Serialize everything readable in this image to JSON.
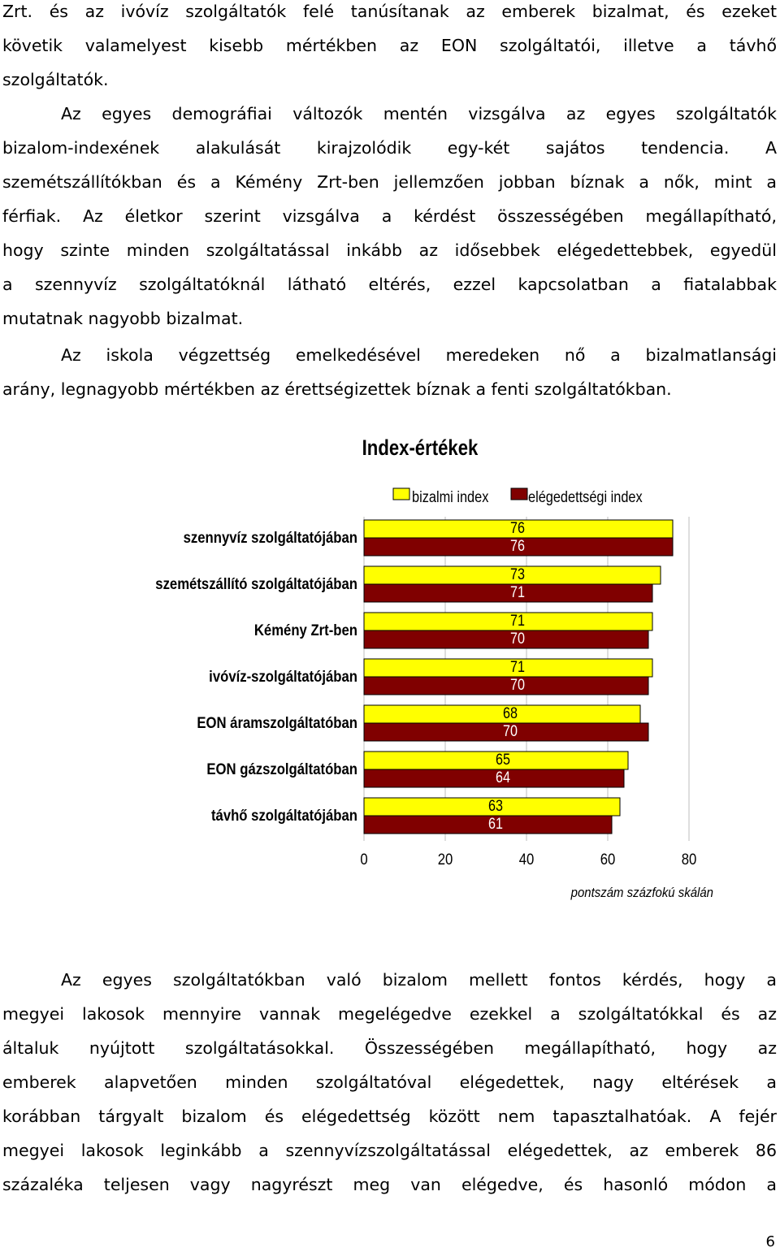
{
  "paragraphs_top": {
    "p1": [
      "Zrt. és az ivóvíz szolgáltatók felé tanúsítanak az emberek bizalmat, és ezeket",
      "követik valamelyest kisebb mértékben az EON szolgáltatói, illetve a távhő",
      "szolgáltatók."
    ],
    "p2": [
      "Az egyes demográfiai változók mentén vizsgálva az egyes szolgáltatók",
      "bizalom-indexének alakulását kirajzolódik egy-két sajátos tendencia. A",
      "szemétszállítókban és a Kémény Zrt-ben jellemzően jobban bíznak a nők, mint a",
      "férfiak. Az életkor szerint vizsgálva a kérdést összességében megállapítható,",
      "hogy szinte minden szolgáltatással inkább az idősebbek elégedettebbek, egyedül",
      "a szennyvíz szolgáltatóknál látható eltérés, ezzel kapcsolatban a fiatalabbak",
      "mutatnak nagyobb bizalmat."
    ],
    "p3": [
      "Az iskola végzettség emelkedésével meredeken nő a bizalmatlansági",
      "arány, legnagyobb mértékben az érettségizettek bíznak a fenti szolgáltatókban."
    ]
  },
  "chart_data": {
    "type": "bar",
    "orientation": "horizontal",
    "title": "Index-értékek",
    "categories": [
      "szennyvíz szolgáltatójában",
      "szemétszállító szolgáltatójában",
      "Kémény Zrt-ben",
      "ivóvíz-szolgáltatójában",
      "EON áramszolgáltatóban",
      "EON gázszolgáltatóban",
      "távhő szolgáltatójában"
    ],
    "series": [
      {
        "name": "bizalmi index",
        "color": "#ffff00",
        "values": [
          76,
          73,
          71,
          71,
          68,
          65,
          63
        ]
      },
      {
        "name": "elégedettségi index",
        "color": "#800000",
        "values": [
          76,
          71,
          70,
          70,
          70,
          64,
          61
        ]
      }
    ],
    "xlim": [
      0,
      80
    ],
    "xticks": [
      "0",
      "20",
      "40",
      "60",
      "80"
    ],
    "xlabel": "pontszám százfokú skálán",
    "grid": "vertical",
    "legend_position": "top"
  },
  "paragraph_bottom": [
    "Az egyes szolgáltatókban való bizalom mellett fontos kérdés, hogy a",
    "megyei lakosok mennyire vannak megelégedve ezekkel a szolgáltatókkal és az",
    "általuk nyújtott szolgáltatásokkal. Összességében megállapítható, hogy az",
    "emberek alapvetően minden szolgáltatóval elégedettek, nagy eltérések a",
    "korábban tárgyalt bizalom és elégedettség között nem tapasztalhatóak. A fejér",
    "megyei lakosok leginkább a szennyvízszolgáltatással elégedettek, az emberek 86",
    "százaléka teljesen vagy nagyrészt meg van elégedve, és hasonló módon a"
  ],
  "page_number": "6"
}
